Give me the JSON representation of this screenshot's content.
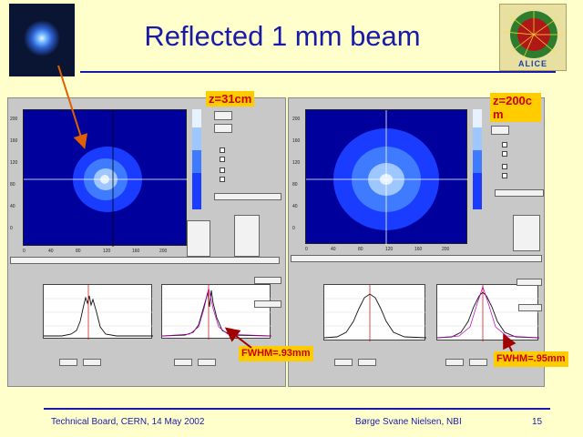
{
  "slide": {
    "title": "Reflected 1 mm beam",
    "footer_left": "Technical Board, CERN, 14 May 2002",
    "footer_center": "Børge Svane Nielsen, NBI",
    "page_number": "15",
    "logo_text": "ALICE"
  },
  "left_panel": {
    "z_label": "z=31cm",
    "fwhm_label": "FWHM=.93mm"
  },
  "right_panel": {
    "z_label": "z=200cm",
    "fwhm_label": "FWHM=.95mm"
  },
  "colors": {
    "title": "#1a1aa8",
    "label_bg": "#ffcc00",
    "label_text": "#cc0000",
    "arrow": "#e06000",
    "image_bg": "#00009c"
  }
}
